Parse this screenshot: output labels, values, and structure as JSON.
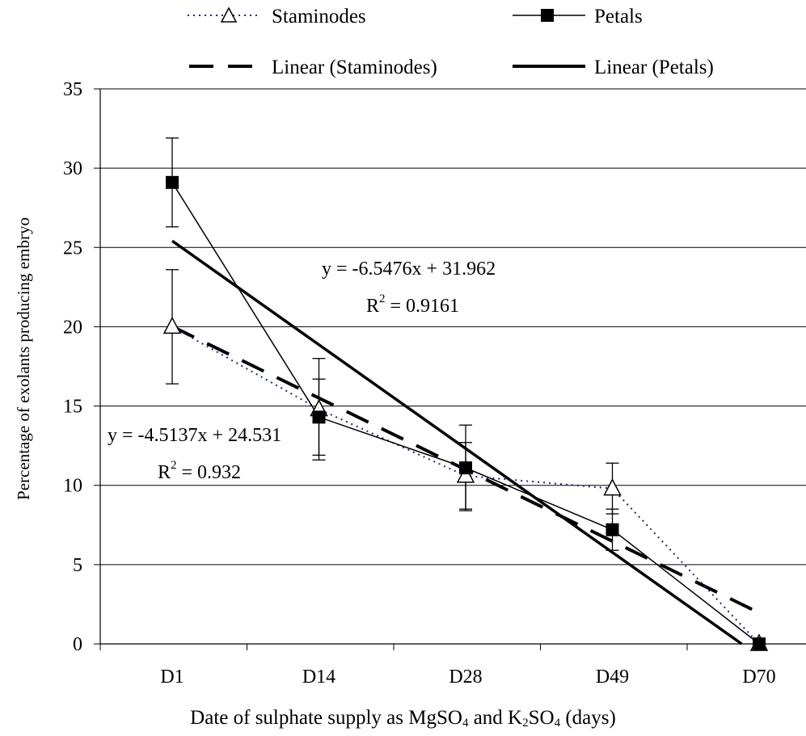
{
  "chart_data": {
    "type": "line",
    "categories": [
      "D1",
      "D14",
      "D28",
      "D49",
      "D70"
    ],
    "xlabel": {
      "part1": "Date of sulphate supply as MgSO",
      "sub1": "4",
      "part2": " and K",
      "sub2": "2",
      "part3": "SO",
      "sub3": "4",
      "part4": " (days)"
    },
    "ylabel": "Percentage of exolants producing embryo",
    "ylim": [
      0,
      35
    ],
    "yticks": [
      0,
      5,
      10,
      15,
      20,
      25,
      30,
      35
    ],
    "grid": "horizontal",
    "legend_position": "top",
    "series": [
      {
        "name": "Staminodes",
        "values": [
          20.0,
          14.8,
          10.6,
          9.8,
          0.0
        ],
        "errors": [
          3.6,
          3.2,
          2.1,
          1.6,
          0.0
        ],
        "color": "#1a237e",
        "style": "dotted",
        "marker": "triangle-open"
      },
      {
        "name": "Petals",
        "values": [
          29.1,
          14.3,
          11.1,
          7.2,
          0.0
        ],
        "errors": [
          2.8,
          2.4,
          2.7,
          1.3,
          0.0
        ],
        "color": "#000000",
        "style": "solid-thin",
        "marker": "square-filled"
      }
    ],
    "trendlines": [
      {
        "name": "Linear (Staminodes)",
        "slope": -4.5137,
        "intercept": 24.531,
        "style": "dashed",
        "color": "#000000"
      },
      {
        "name": "Linear (Petals)",
        "slope": -6.5476,
        "intercept": 31.962,
        "style": "solid-thick",
        "color": "#000000"
      }
    ],
    "annotations": [
      {
        "equation": "y = -6.5476x + 31.962",
        "r2": "R",
        "r2_sup": "2",
        "r2_value": " = 0.9161"
      },
      {
        "equation": "y = -4.5137x + 24.531",
        "r2": "R",
        "r2_sup": "2",
        "r2_value": " = 0.932"
      }
    ]
  }
}
